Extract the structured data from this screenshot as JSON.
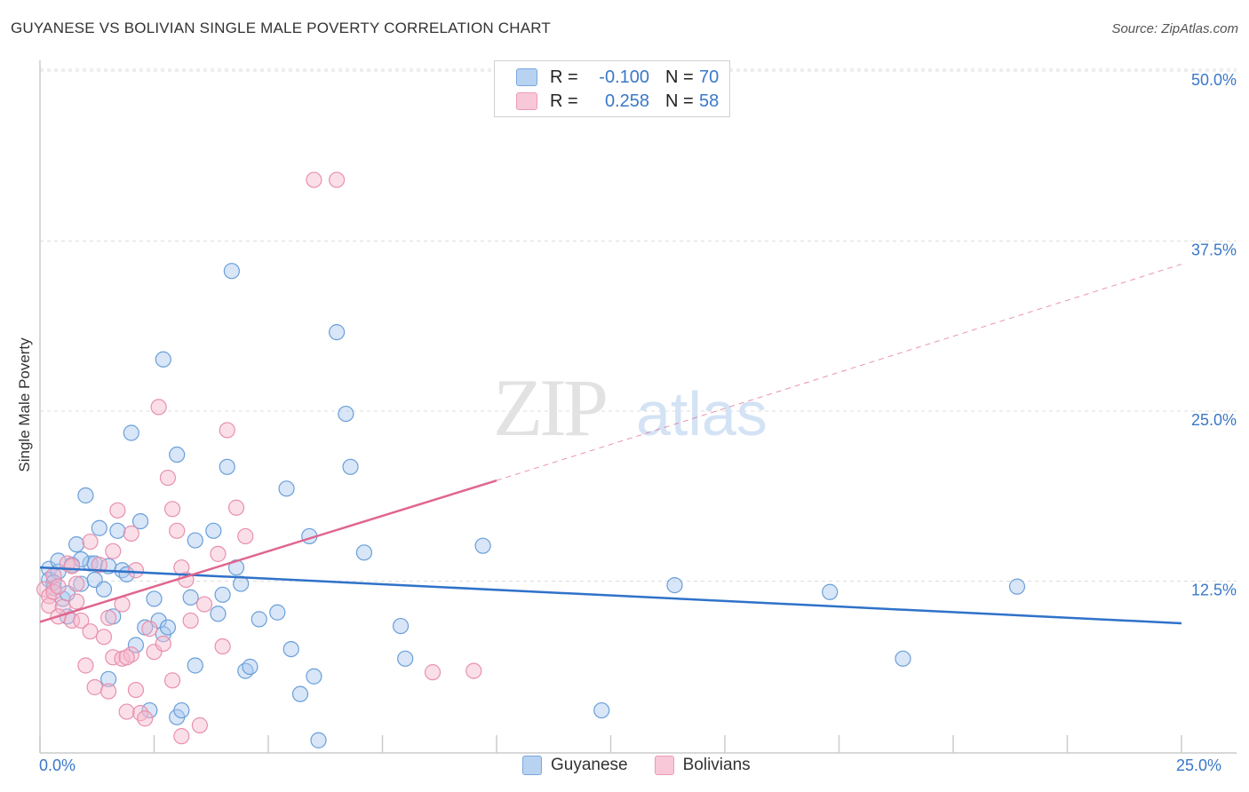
{
  "title": "GUYANESE VS BOLIVIAN SINGLE MALE POVERTY CORRELATION CHART",
  "source": "Source: ZipAtlas.com",
  "legend_top": {
    "rows": [
      {
        "r_label": "R =",
        "r_value": "-0.100",
        "n_label": "N =",
        "n_value": "70"
      },
      {
        "r_label": "R =",
        "r_value": "0.258",
        "n_label": "N =",
        "n_value": "58"
      }
    ]
  },
  "legend_bottom": [
    "Guyanese",
    "Bolivians"
  ],
  "colors": {
    "guyanese_fill": "#a8c8f0",
    "guyanese_stroke": "#6a9fd8",
    "guyanese_line": "#2f72c9",
    "bolivians_fill": "#f6b8cc",
    "bolivians_stroke": "#e890ae",
    "bolivians_line": "#e0668e",
    "axis_text": "#3a78c8",
    "grid": "#dddddd"
  },
  "chart_data": {
    "type": "scatter",
    "title": "GUYANESE VS BOLIVIAN SINGLE MALE POVERTY CORRELATION CHART",
    "xlabel": "",
    "ylabel": "Single Male Poverty",
    "xlim": [
      0,
      25
    ],
    "ylim": [
      0,
      50
    ],
    "x_tick_labels": [
      "0.0%",
      "25.0%"
    ],
    "y_ticks": [
      12.5,
      25.0,
      37.5,
      50.0
    ],
    "y_tick_labels": [
      "12.5%",
      "25.0%",
      "37.5%",
      "50.0%"
    ],
    "watermark": "ZIPatlas",
    "series": [
      {
        "name": "Guyanese",
        "R": -0.1,
        "N": 70,
        "trend": {
          "x": [
            0,
            25
          ],
          "y": [
            13.5,
            9.4
          ],
          "dashed_extension": false
        },
        "points": [
          [
            0.2,
            13.4
          ],
          [
            0.2,
            12.6
          ],
          [
            0.3,
            12.0
          ],
          [
            0.4,
            13.2
          ],
          [
            0.4,
            14.0
          ],
          [
            0.5,
            11.2
          ],
          [
            0.6,
            11.6
          ],
          [
            0.6,
            9.9
          ],
          [
            0.7,
            13.7
          ],
          [
            0.8,
            15.2
          ],
          [
            0.9,
            12.3
          ],
          [
            1.0,
            18.8
          ],
          [
            1.1,
            13.8
          ],
          [
            1.2,
            13.8
          ],
          [
            1.2,
            12.6
          ],
          [
            1.3,
            16.4
          ],
          [
            1.4,
            11.9
          ],
          [
            1.5,
            13.6
          ],
          [
            1.6,
            9.9
          ],
          [
            1.7,
            16.2
          ],
          [
            1.8,
            13.3
          ],
          [
            1.9,
            13.0
          ],
          [
            2.0,
            23.4
          ],
          [
            2.1,
            7.8
          ],
          [
            2.2,
            16.9
          ],
          [
            2.3,
            9.1
          ],
          [
            2.4,
            3.0
          ],
          [
            2.5,
            11.2
          ],
          [
            2.6,
            9.6
          ],
          [
            2.7,
            8.6
          ],
          [
            2.7,
            28.8
          ],
          [
            2.8,
            9.1
          ],
          [
            3.0,
            2.5
          ],
          [
            3.0,
            21.8
          ],
          [
            3.1,
            3.0
          ],
          [
            3.3,
            11.3
          ],
          [
            3.4,
            15.5
          ],
          [
            3.4,
            6.3
          ],
          [
            3.8,
            16.2
          ],
          [
            3.9,
            10.1
          ],
          [
            4.0,
            11.5
          ],
          [
            4.1,
            20.9
          ],
          [
            4.2,
            35.3
          ],
          [
            4.3,
            13.5
          ],
          [
            4.4,
            12.3
          ],
          [
            4.5,
            5.9
          ],
          [
            4.6,
            6.2
          ],
          [
            4.8,
            9.7
          ],
          [
            5.2,
            10.2
          ],
          [
            5.4,
            19.3
          ],
          [
            5.5,
            7.5
          ],
          [
            5.7,
            4.2
          ],
          [
            5.9,
            15.8
          ],
          [
            6.0,
            5.5
          ],
          [
            6.1,
            0.8
          ],
          [
            6.5,
            30.8
          ],
          [
            6.7,
            24.8
          ],
          [
            6.8,
            20.9
          ],
          [
            7.1,
            14.6
          ],
          [
            7.9,
            9.2
          ],
          [
            8.0,
            6.8
          ],
          [
            9.7,
            15.1
          ],
          [
            12.3,
            3.0
          ],
          [
            13.9,
            12.2
          ],
          [
            17.3,
            11.7
          ],
          [
            18.9,
            6.8
          ],
          [
            21.4,
            12.1
          ],
          [
            0.3,
            12.4
          ],
          [
            0.9,
            14.1
          ],
          [
            1.5,
            5.3
          ]
        ]
      },
      {
        "name": "Bolivians",
        "R": 0.258,
        "N": 58,
        "trend": {
          "x": [
            0,
            10.0
          ],
          "y": [
            9.5,
            19.9
          ],
          "dashed_extension": true,
          "dash_to": {
            "x": 25,
            "y": 35.8
          }
        },
        "points": [
          [
            0.1,
            11.9
          ],
          [
            0.2,
            11.4
          ],
          [
            0.2,
            10.7
          ],
          [
            0.3,
            12.9
          ],
          [
            0.3,
            11.7
          ],
          [
            0.4,
            12.1
          ],
          [
            0.5,
            10.6
          ],
          [
            0.6,
            13.8
          ],
          [
            0.7,
            13.6
          ],
          [
            0.7,
            9.6
          ],
          [
            0.8,
            12.3
          ],
          [
            0.9,
            9.6
          ],
          [
            1.0,
            6.3
          ],
          [
            1.1,
            15.4
          ],
          [
            1.1,
            8.8
          ],
          [
            1.2,
            4.7
          ],
          [
            1.3,
            13.7
          ],
          [
            1.4,
            8.4
          ],
          [
            1.5,
            9.8
          ],
          [
            1.5,
            4.4
          ],
          [
            1.6,
            14.7
          ],
          [
            1.6,
            6.9
          ],
          [
            1.7,
            17.7
          ],
          [
            1.8,
            6.8
          ],
          [
            1.8,
            10.8
          ],
          [
            1.9,
            2.9
          ],
          [
            2.0,
            7.1
          ],
          [
            2.0,
            16.0
          ],
          [
            2.1,
            4.5
          ],
          [
            2.1,
            13.3
          ],
          [
            2.2,
            2.8
          ],
          [
            2.3,
            2.4
          ],
          [
            2.4,
            9.0
          ],
          [
            2.5,
            7.3
          ],
          [
            2.6,
            25.3
          ],
          [
            2.7,
            7.9
          ],
          [
            2.8,
            20.1
          ],
          [
            2.9,
            17.8
          ],
          [
            2.9,
            5.2
          ],
          [
            3.0,
            16.2
          ],
          [
            3.1,
            1.1
          ],
          [
            3.2,
            12.6
          ],
          [
            3.3,
            9.6
          ],
          [
            3.5,
            1.9
          ],
          [
            3.6,
            10.8
          ],
          [
            3.9,
            14.5
          ],
          [
            4.0,
            7.7
          ],
          [
            4.1,
            23.6
          ],
          [
            4.3,
            17.9
          ],
          [
            4.5,
            15.8
          ],
          [
            6.0,
            42.0
          ],
          [
            6.5,
            42.0
          ],
          [
            8.6,
            5.8
          ],
          [
            9.5,
            5.9
          ],
          [
            0.4,
            9.9
          ],
          [
            1.9,
            6.9
          ],
          [
            0.8,
            11.0
          ],
          [
            3.1,
            13.5
          ]
        ]
      }
    ]
  }
}
